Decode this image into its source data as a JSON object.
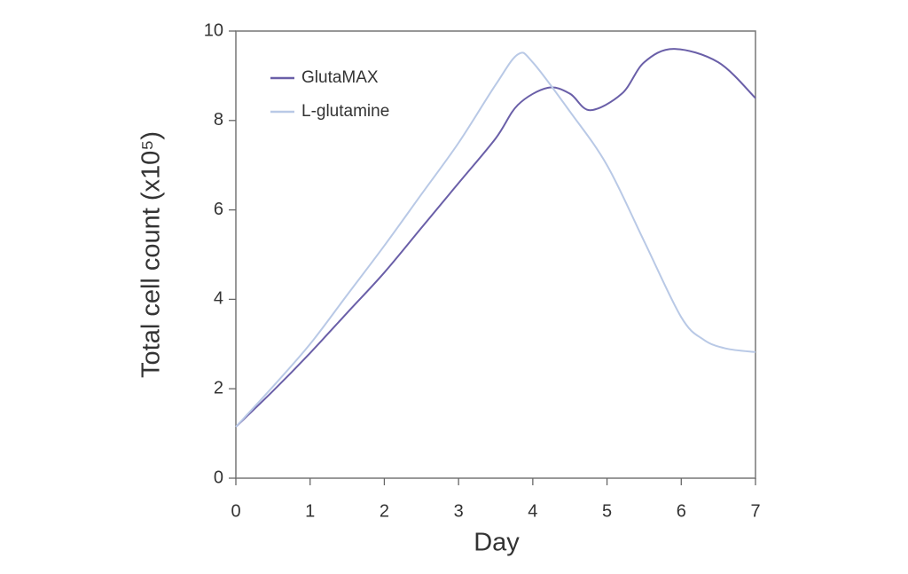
{
  "chart_data": {
    "type": "line",
    "xlabel": "Day",
    "ylabel": "Total cell count (x10⁵)",
    "series": [
      {
        "name": "GlutaMAX",
        "color": "#6a5fa8",
        "x": [
          0,
          0.5,
          1,
          1.5,
          2,
          2.5,
          3,
          3.5,
          3.8,
          4.2,
          4.5,
          4.77,
          5.2,
          5.5,
          5.9,
          6.5,
          7
        ],
        "values": [
          1.15,
          1.95,
          2.8,
          3.7,
          4.6,
          5.6,
          6.6,
          7.6,
          8.35,
          8.73,
          8.6,
          8.23,
          8.6,
          9.3,
          9.6,
          9.3,
          8.5
        ]
      },
      {
        "name": "L-glutamine",
        "color": "#b9c9e6",
        "x": [
          0,
          0.5,
          1,
          1.5,
          2,
          2.5,
          3,
          3.5,
          3.8,
          4,
          4.5,
          5,
          5.5,
          6,
          6.3,
          6.6,
          7
        ],
        "values": [
          1.15,
          2.05,
          3.0,
          4.1,
          5.2,
          6.35,
          7.5,
          8.8,
          9.48,
          9.3,
          8.2,
          7.0,
          5.3,
          3.6,
          3.1,
          2.9,
          2.82
        ]
      }
    ],
    "xlim": [
      0,
      7
    ],
    "xticks": [
      0,
      1,
      2,
      3,
      4,
      5,
      6,
      7
    ],
    "ylim": [
      0,
      10
    ],
    "yticks": [
      0,
      2,
      4,
      6,
      8,
      10
    ],
    "legend": "upper-left"
  }
}
